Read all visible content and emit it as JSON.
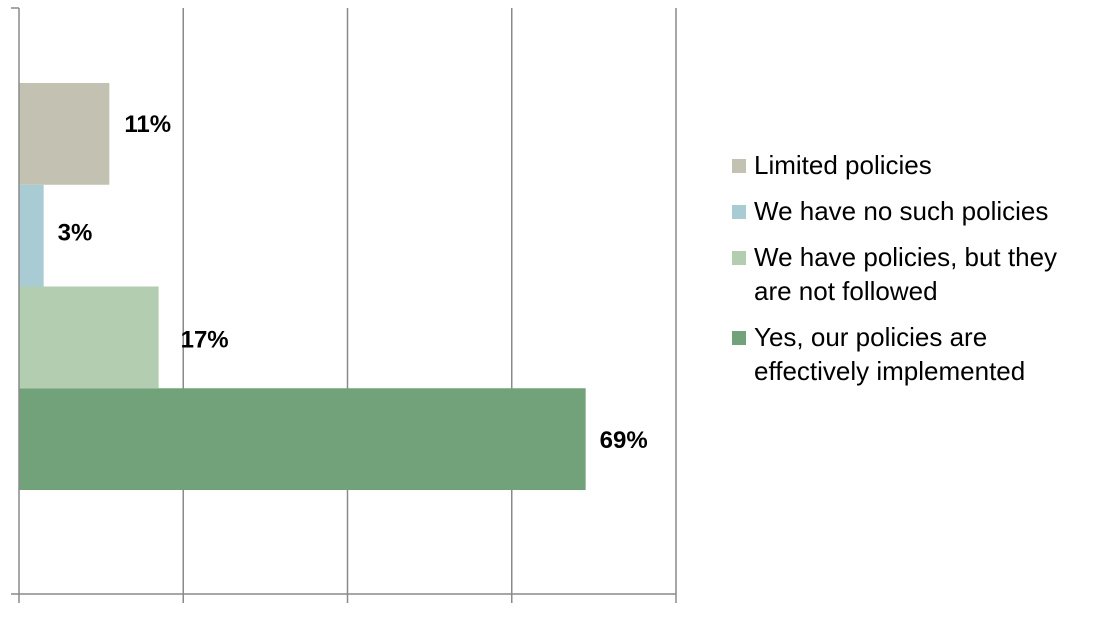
{
  "chart_data": {
    "type": "bar",
    "orientation": "horizontal",
    "categories": [
      "Yes, our policies are effectively implemented",
      "We have policies, but they are not followed",
      "We have no such policies",
      "Limited policies"
    ],
    "series": [
      {
        "name": "Yes, our policies are effectively implemented",
        "value": 69,
        "label": "69%",
        "color": "#72a27a"
      },
      {
        "name": "We have policies, but they are not followed",
        "value": 17,
        "label": "17%",
        "color": "#b2cdb0"
      },
      {
        "name": "We have no such policies",
        "value": 3,
        "label": "3%",
        "color": "#a9cbd4"
      },
      {
        "name": "Limited policies",
        "value": 11,
        "label": "11%",
        "color": "#c3c1b2"
      }
    ],
    "xlim": [
      0,
      80
    ],
    "xticks": [
      "0",
      "20",
      "40",
      "60",
      "80"
    ],
    "grid": true,
    "legend_position": "right",
    "title": "",
    "xlabel": "",
    "ylabel": ""
  },
  "legend": {
    "items": [
      {
        "label": "Limited policies",
        "color": "#c3c1b2"
      },
      {
        "label": "We have no such policies",
        "color": "#a9cbd4"
      },
      {
        "label": "We have policies, but they are not followed",
        "color": "#b2cdb0"
      },
      {
        "label": "Yes, our policies are effectively implemented",
        "color": "#72a27a"
      }
    ]
  }
}
